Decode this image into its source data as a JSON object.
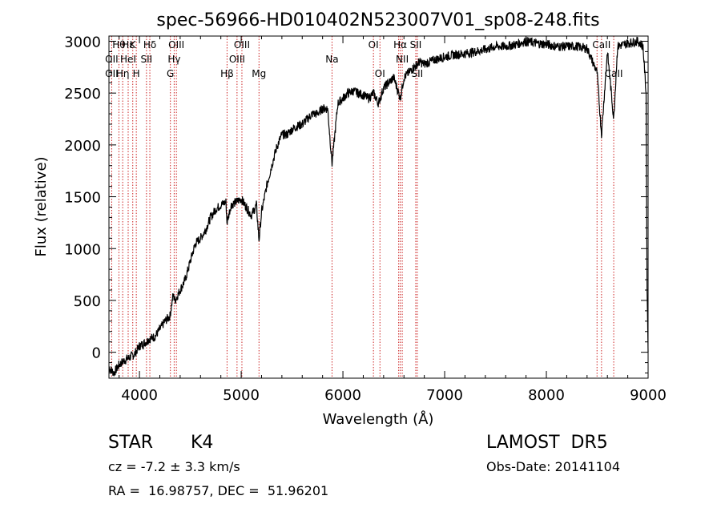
{
  "chart_data": {
    "type": "line",
    "title": "spec-56966-HD010402N523007V01_sp08-248.fits",
    "xlabel": "Wavelength (Å)",
    "ylabel": "Flux (relative)",
    "xlim": [
      3700,
      9000
    ],
    "ylim": [
      -250,
      3050
    ],
    "x_ticks": [
      "4000",
      "5000",
      "6000",
      "7000",
      "8000",
      "9000"
    ],
    "y_ticks": [
      "0",
      "500",
      "1000",
      "1500",
      "2000",
      "2500",
      "3000"
    ],
    "grid": false,
    "legend": "none",
    "series": [
      {
        "x": [
          3700,
          3750,
          3800,
          3850,
          3900,
          3950,
          4000,
          4050,
          4100,
          4150,
          4200,
          4250,
          4300,
          4330,
          4350,
          4400,
          4450,
          4500,
          4550,
          4600,
          4650,
          4700,
          4750,
          4800,
          4850,
          4860,
          4900,
          4950,
          5000,
          5050,
          5100,
          5150,
          5175,
          5200,
          5250,
          5300,
          5350,
          5400,
          5450,
          5500,
          5550,
          5600,
          5650,
          5700,
          5750,
          5800,
          5850,
          5893,
          5950,
          6000,
          6050,
          6100,
          6150,
          6200,
          6250,
          6300,
          6350,
          6400,
          6450,
          6500,
          6563,
          6600,
          6650,
          6700,
          6750,
          6800,
          6900,
          7000,
          7100,
          7200,
          7300,
          7400,
          7500,
          7600,
          7700,
          7800,
          7900,
          8000,
          8100,
          8200,
          8300,
          8400,
          8498,
          8542,
          8600,
          8662,
          8700,
          8800,
          8900,
          8950,
          8980,
          8990,
          9000
        ],
        "y": [
          -150,
          -200,
          -120,
          -80,
          -50,
          -20,
          60,
          90,
          130,
          150,
          220,
          300,
          350,
          550,
          500,
          600,
          700,
          880,
          1050,
          1100,
          1180,
          1300,
          1380,
          1420,
          1450,
          1250,
          1420,
          1450,
          1480,
          1400,
          1320,
          1420,
          1080,
          1350,
          1600,
          1800,
          1980,
          2100,
          2100,
          2150,
          2180,
          2200,
          2250,
          2300,
          2300,
          2350,
          2350,
          1820,
          2400,
          2450,
          2500,
          2520,
          2500,
          2480,
          2450,
          2500,
          2400,
          2550,
          2600,
          2650,
          2450,
          2650,
          2700,
          2750,
          2800,
          2780,
          2820,
          2850,
          2870,
          2880,
          2900,
          2920,
          2950,
          2950,
          2970,
          3000,
          2980,
          2970,
          2950,
          2950,
          2950,
          2930,
          2700,
          2100,
          2900,
          2250,
          2950,
          2980,
          3000,
          2950,
          2500,
          600,
          0
        ]
      }
    ],
    "line_labels": [
      {
        "name": "Hθ",
        "x": 3798,
        "row": 0
      },
      {
        "name": "OII",
        "x": 3727,
        "row": 1
      },
      {
        "name": "OII",
        "x": 3727,
        "row": 2
      },
      {
        "name": "Hη",
        "x": 3835,
        "row": 2
      },
      {
        "name": "Hε",
        "x": 3889,
        "row": 0
      },
      {
        "name": "K",
        "x": 3934,
        "row": 0
      },
      {
        "name": "HeI",
        "x": 3889,
        "row": 1
      },
      {
        "name": "H",
        "x": 3969,
        "row": 2
      },
      {
        "name": "Hδ",
        "x": 4102,
        "row": 0
      },
      {
        "name": "SII",
        "x": 4069,
        "row": 1
      },
      {
        "name": "OIII",
        "x": 4363,
        "row": 0
      },
      {
        "name": "Hγ",
        "x": 4341,
        "row": 1
      },
      {
        "name": "G",
        "x": 4304,
        "row": 2
      },
      {
        "name": "OIII",
        "x": 5007,
        "row": 0
      },
      {
        "name": "OIII",
        "x": 4959,
        "row": 1
      },
      {
        "name": "Hβ",
        "x": 4861,
        "row": 2
      },
      {
        "name": "Mg",
        "x": 5175,
        "row": 2
      },
      {
        "name": "Na",
        "x": 5893,
        "row": 1
      },
      {
        "name": "OI",
        "x": 6300,
        "row": 0
      },
      {
        "name": "OI",
        "x": 6364,
        "row": 2
      },
      {
        "name": "Hα",
        "x": 6563,
        "row": 0
      },
      {
        "name": "SII",
        "x": 6716,
        "row": 0
      },
      {
        "name": "NII",
        "x": 6583,
        "row": 1
      },
      {
        "name": "SII",
        "x": 6731,
        "row": 2
      },
      {
        "name": "CaII",
        "x": 8542,
        "row": 0
      },
      {
        "name": "CaII",
        "x": 8662,
        "row": 2
      }
    ],
    "line_markers": [
      3727,
      3798,
      3835,
      3889,
      3934,
      3969,
      4069,
      4102,
      4304,
      4341,
      4363,
      4861,
      4959,
      5007,
      5175,
      5893,
      6300,
      6364,
      6548,
      6563,
      6583,
      6716,
      6731,
      8498,
      8542,
      8662
    ]
  },
  "info": {
    "object_class": "STAR",
    "subclass": "K4",
    "survey": "LAMOST  DR5",
    "redshift_text": "cz = -7.2 ± 3.3 km/s",
    "obs_date": "Obs-Date: 20141104",
    "coords": "RA =  16.98757, DEC =  51.96201"
  }
}
